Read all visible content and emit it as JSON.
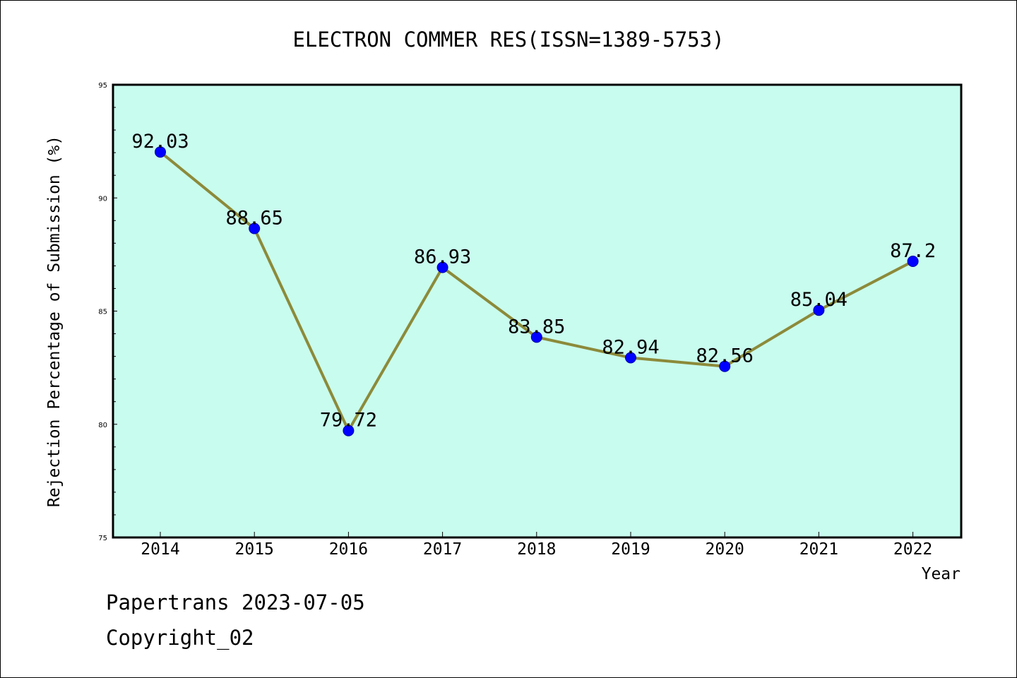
{
  "chart_data": {
    "type": "line",
    "title": "ELECTRON COMMER RES(ISSN=1389-5753)",
    "xlabel": "Year",
    "ylabel": "Rejection Percentage of Submission (%)",
    "categories": [
      "2014",
      "2015",
      "2016",
      "2017",
      "2018",
      "2019",
      "2020",
      "2021",
      "2022"
    ],
    "values": [
      92.03,
      88.65,
      79.72,
      86.93,
      83.85,
      82.94,
      82.56,
      85.04,
      87.2
    ],
    "data_labels": [
      "92.03",
      "88.65",
      "79.72",
      "86.93",
      "83.85",
      "82.94",
      "82.56",
      "85.04",
      "87.2"
    ],
    "ylim": [
      75,
      95
    ],
    "yticks": [
      75,
      80,
      85,
      90,
      95
    ],
    "grid": false,
    "legend": "none",
    "colors": {
      "plot_background": "#c8fcee",
      "line": "#8c8a3a",
      "marker": "#0000ff"
    }
  },
  "footer": {
    "line1": "Papertrans 2023-07-05",
    "line2": "Copyright_02"
  }
}
